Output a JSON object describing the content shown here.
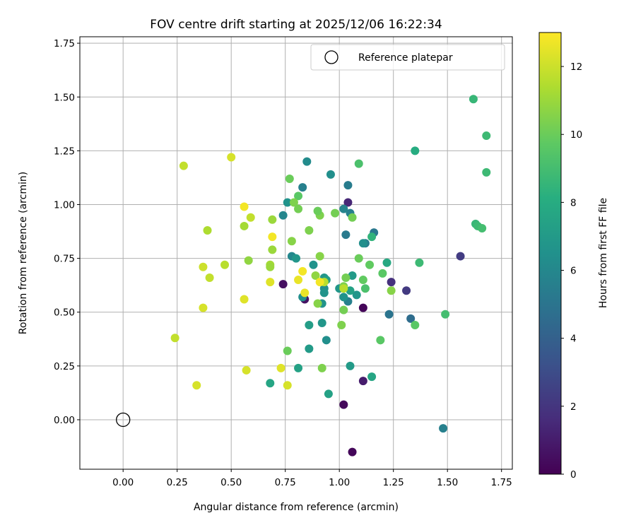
{
  "chart_data": {
    "type": "scatter",
    "title": "FOV centre drift starting at 2025/12/06 16:22:34",
    "xlabel": "Angular distance from reference (arcmin)",
    "ylabel": "Rotation from reference (arcmin)",
    "xlim": [
      -0.2,
      1.8
    ],
    "ylim": [
      -0.23,
      1.78
    ],
    "xticks": [
      "0.00",
      "0.25",
      "0.50",
      "0.75",
      "1.00",
      "1.25",
      "1.50",
      "1.75"
    ],
    "xtick_values": [
      0,
      0.25,
      0.5,
      0.75,
      1.0,
      1.25,
      1.5,
      1.75
    ],
    "yticks": [
      "0.00",
      "0.25",
      "0.50",
      "0.75",
      "1.00",
      "1.25",
      "1.50",
      "1.75"
    ],
    "ytick_values": [
      0,
      0.25,
      0.5,
      0.75,
      1.0,
      1.25,
      1.5,
      1.75
    ],
    "grid": true,
    "legend": {
      "label": "Reference platepar",
      "placement": "top-right"
    },
    "reference_point": {
      "x": 0.0,
      "y": 0.0
    },
    "colorbar": {
      "label": "Hours from first FF file",
      "colormap": "viridis",
      "range": [
        0,
        13
      ],
      "ticks": [
        "0",
        "2",
        "4",
        "6",
        "8",
        "10",
        "12"
      ],
      "tick_values": [
        0,
        2,
        4,
        6,
        8,
        10,
        12
      ]
    },
    "points": [
      {
        "x": 0.74,
        "y": 0.63,
        "h": 0.5
      },
      {
        "x": 0.84,
        "y": 0.56,
        "h": 0.6
      },
      {
        "x": 1.02,
        "y": 0.07,
        "h": 0.3
      },
      {
        "x": 1.06,
        "y": -0.15,
        "h": 0.2
      },
      {
        "x": 1.11,
        "y": 0.52,
        "h": 0.2
      },
      {
        "x": 1.11,
        "y": 0.18,
        "h": 1.0
      },
      {
        "x": 1.04,
        "y": 1.01,
        "h": 1.4
      },
      {
        "x": 1.24,
        "y": 0.64,
        "h": 1.8
      },
      {
        "x": 1.31,
        "y": 0.6,
        "h": 2.2
      },
      {
        "x": 1.56,
        "y": 0.76,
        "h": 2.3
      },
      {
        "x": 1.33,
        "y": 0.47,
        "h": 4.6
      },
      {
        "x": 1.23,
        "y": 0.49,
        "h": 5.0
      },
      {
        "x": 1.48,
        "y": -0.04,
        "h": 5.6
      },
      {
        "x": 1.16,
        "y": 0.87,
        "h": 5.2
      },
      {
        "x": 1.12,
        "y": 0.82,
        "h": 5.5
      },
      {
        "x": 1.03,
        "y": 0.86,
        "h": 5.3
      },
      {
        "x": 1.05,
        "y": 0.96,
        "h": 5.6
      },
      {
        "x": 1.04,
        "y": 1.09,
        "h": 5.4
      },
      {
        "x": 1.02,
        "y": 0.98,
        "h": 5.8
      },
      {
        "x": 0.96,
        "y": 1.14,
        "h": 6.4
      },
      {
        "x": 0.85,
        "y": 1.2,
        "h": 6.2
      },
      {
        "x": 0.83,
        "y": 1.08,
        "h": 5.6
      },
      {
        "x": 0.74,
        "y": 0.95,
        "h": 5.9
      },
      {
        "x": 0.76,
        "y": 1.01,
        "h": 6.6
      },
      {
        "x": 0.78,
        "y": 0.76,
        "h": 6.0
      },
      {
        "x": 0.8,
        "y": 0.75,
        "h": 6.8
      },
      {
        "x": 0.88,
        "y": 0.72,
        "h": 6.6
      },
      {
        "x": 0.93,
        "y": 0.66,
        "h": 6.8
      },
      {
        "x": 0.94,
        "y": 0.65,
        "h": 7.2
      },
      {
        "x": 0.93,
        "y": 0.61,
        "h": 6.4
      },
      {
        "x": 0.93,
        "y": 0.59,
        "h": 6.6
      },
      {
        "x": 0.83,
        "y": 0.57,
        "h": 6.4
      },
      {
        "x": 0.92,
        "y": 0.54,
        "h": 6.6
      },
      {
        "x": 1.04,
        "y": 0.55,
        "h": 5.6
      },
      {
        "x": 1.02,
        "y": 0.57,
        "h": 6.6
      },
      {
        "x": 1.0,
        "y": 0.61,
        "h": 6.8
      },
      {
        "x": 1.06,
        "y": 0.67,
        "h": 7.0
      },
      {
        "x": 1.08,
        "y": 0.58,
        "h": 6.8
      },
      {
        "x": 1.05,
        "y": 0.6,
        "h": 7.4
      },
      {
        "x": 0.92,
        "y": 0.45,
        "h": 6.8
      },
      {
        "x": 0.94,
        "y": 0.37,
        "h": 6.4
      },
      {
        "x": 0.86,
        "y": 0.44,
        "h": 7.2
      },
      {
        "x": 0.86,
        "y": 0.33,
        "h": 7.0
      },
      {
        "x": 0.95,
        "y": 0.12,
        "h": 7.4
      },
      {
        "x": 1.05,
        "y": 0.25,
        "h": 7.0
      },
      {
        "x": 1.15,
        "y": 0.2,
        "h": 7.6
      },
      {
        "x": 0.81,
        "y": 0.24,
        "h": 7.4
      },
      {
        "x": 0.68,
        "y": 0.17,
        "h": 7.6
      },
      {
        "x": 1.11,
        "y": 0.82,
        "h": 6.4
      },
      {
        "x": 1.22,
        "y": 0.73,
        "h": 7.8
      },
      {
        "x": 1.35,
        "y": 1.25,
        "h": 8.0
      },
      {
        "x": 1.62,
        "y": 1.49,
        "h": 8.6
      },
      {
        "x": 1.68,
        "y": 1.32,
        "h": 8.8
      },
      {
        "x": 1.68,
        "y": 1.15,
        "h": 8.8
      },
      {
        "x": 1.63,
        "y": 0.91,
        "h": 8.6
      },
      {
        "x": 1.64,
        "y": 0.9,
        "h": 8.8
      },
      {
        "x": 1.66,
        "y": 0.89,
        "h": 9.0
      },
      {
        "x": 1.49,
        "y": 0.49,
        "h": 9.0
      },
      {
        "x": 1.37,
        "y": 0.73,
        "h": 8.8
      },
      {
        "x": 1.15,
        "y": 0.85,
        "h": 8.4
      },
      {
        "x": 1.09,
        "y": 1.19,
        "h": 9.2
      },
      {
        "x": 1.12,
        "y": 0.61,
        "h": 9.2
      },
      {
        "x": 1.14,
        "y": 0.72,
        "h": 9.8
      },
      {
        "x": 1.2,
        "y": 0.68,
        "h": 9.6
      },
      {
        "x": 1.11,
        "y": 0.65,
        "h": 9.8
      },
      {
        "x": 1.09,
        "y": 0.75,
        "h": 10.0
      },
      {
        "x": 1.03,
        "y": 0.66,
        "h": 10.2
      },
      {
        "x": 1.02,
        "y": 0.62,
        "h": 10.4
      },
      {
        "x": 1.02,
        "y": 0.51,
        "h": 10.2
      },
      {
        "x": 1.01,
        "y": 0.44,
        "h": 10.4
      },
      {
        "x": 1.19,
        "y": 0.37,
        "h": 9.6
      },
      {
        "x": 1.35,
        "y": 0.44,
        "h": 9.6
      },
      {
        "x": 1.24,
        "y": 0.6,
        "h": 10.6
      },
      {
        "x": 1.06,
        "y": 0.94,
        "h": 10.2
      },
      {
        "x": 0.98,
        "y": 0.96,
        "h": 10.2
      },
      {
        "x": 0.91,
        "y": 0.95,
        "h": 10.4
      },
      {
        "x": 0.9,
        "y": 0.97,
        "h": 10.0
      },
      {
        "x": 0.81,
        "y": 1.04,
        "h": 9.6
      },
      {
        "x": 0.77,
        "y": 1.12,
        "h": 10.0
      },
      {
        "x": 0.79,
        "y": 1.01,
        "h": 10.4
      },
      {
        "x": 0.81,
        "y": 0.98,
        "h": 10.2
      },
      {
        "x": 0.86,
        "y": 0.88,
        "h": 10.4
      },
      {
        "x": 0.78,
        "y": 0.83,
        "h": 10.6
      },
      {
        "x": 0.91,
        "y": 0.76,
        "h": 10.6
      },
      {
        "x": 0.89,
        "y": 0.67,
        "h": 10.8
      },
      {
        "x": 0.9,
        "y": 0.54,
        "h": 10.6
      },
      {
        "x": 0.92,
        "y": 0.24,
        "h": 10.4
      },
      {
        "x": 0.76,
        "y": 0.32,
        "h": 10.0
      },
      {
        "x": 0.93,
        "y": 0.64,
        "h": 11.6
      },
      {
        "x": 1.02,
        "y": 0.61,
        "h": 11.6
      },
      {
        "x": 0.69,
        "y": 0.93,
        "h": 11.0
      },
      {
        "x": 0.69,
        "y": 0.79,
        "h": 11.0
      },
      {
        "x": 0.68,
        "y": 0.72,
        "h": 11.2
      },
      {
        "x": 0.68,
        "y": 0.71,
        "h": 11.0
      },
      {
        "x": 0.58,
        "y": 0.74,
        "h": 10.8
      },
      {
        "x": 0.56,
        "y": 0.9,
        "h": 11.2
      },
      {
        "x": 0.59,
        "y": 0.94,
        "h": 11.8
      },
      {
        "x": 0.5,
        "y": 1.22,
        "h": 12.2
      },
      {
        "x": 0.28,
        "y": 1.18,
        "h": 11.8
      },
      {
        "x": 0.39,
        "y": 0.88,
        "h": 11.4
      },
      {
        "x": 0.47,
        "y": 0.72,
        "h": 11.6
      },
      {
        "x": 0.4,
        "y": 0.66,
        "h": 11.8
      },
      {
        "x": 0.37,
        "y": 0.71,
        "h": 12.0
      },
      {
        "x": 0.37,
        "y": 0.52,
        "h": 12.2
      },
      {
        "x": 0.24,
        "y": 0.38,
        "h": 11.8
      },
      {
        "x": 0.34,
        "y": 0.16,
        "h": 12.2
      },
      {
        "x": 0.57,
        "y": 0.23,
        "h": 12.2
      },
      {
        "x": 0.56,
        "y": 0.56,
        "h": 12.4
      },
      {
        "x": 0.68,
        "y": 0.64,
        "h": 12.4
      },
      {
        "x": 0.73,
        "y": 0.24,
        "h": 12.4
      },
      {
        "x": 0.76,
        "y": 0.16,
        "h": 12.2
      },
      {
        "x": 0.81,
        "y": 0.65,
        "h": 12.6
      },
      {
        "x": 0.84,
        "y": 0.59,
        "h": 12.6
      },
      {
        "x": 0.83,
        "y": 0.69,
        "h": 12.8
      },
      {
        "x": 0.91,
        "y": 0.64,
        "h": 12.8
      },
      {
        "x": 0.56,
        "y": 0.99,
        "h": 12.8
      },
      {
        "x": 0.69,
        "y": 0.85,
        "h": 12.8
      }
    ]
  }
}
